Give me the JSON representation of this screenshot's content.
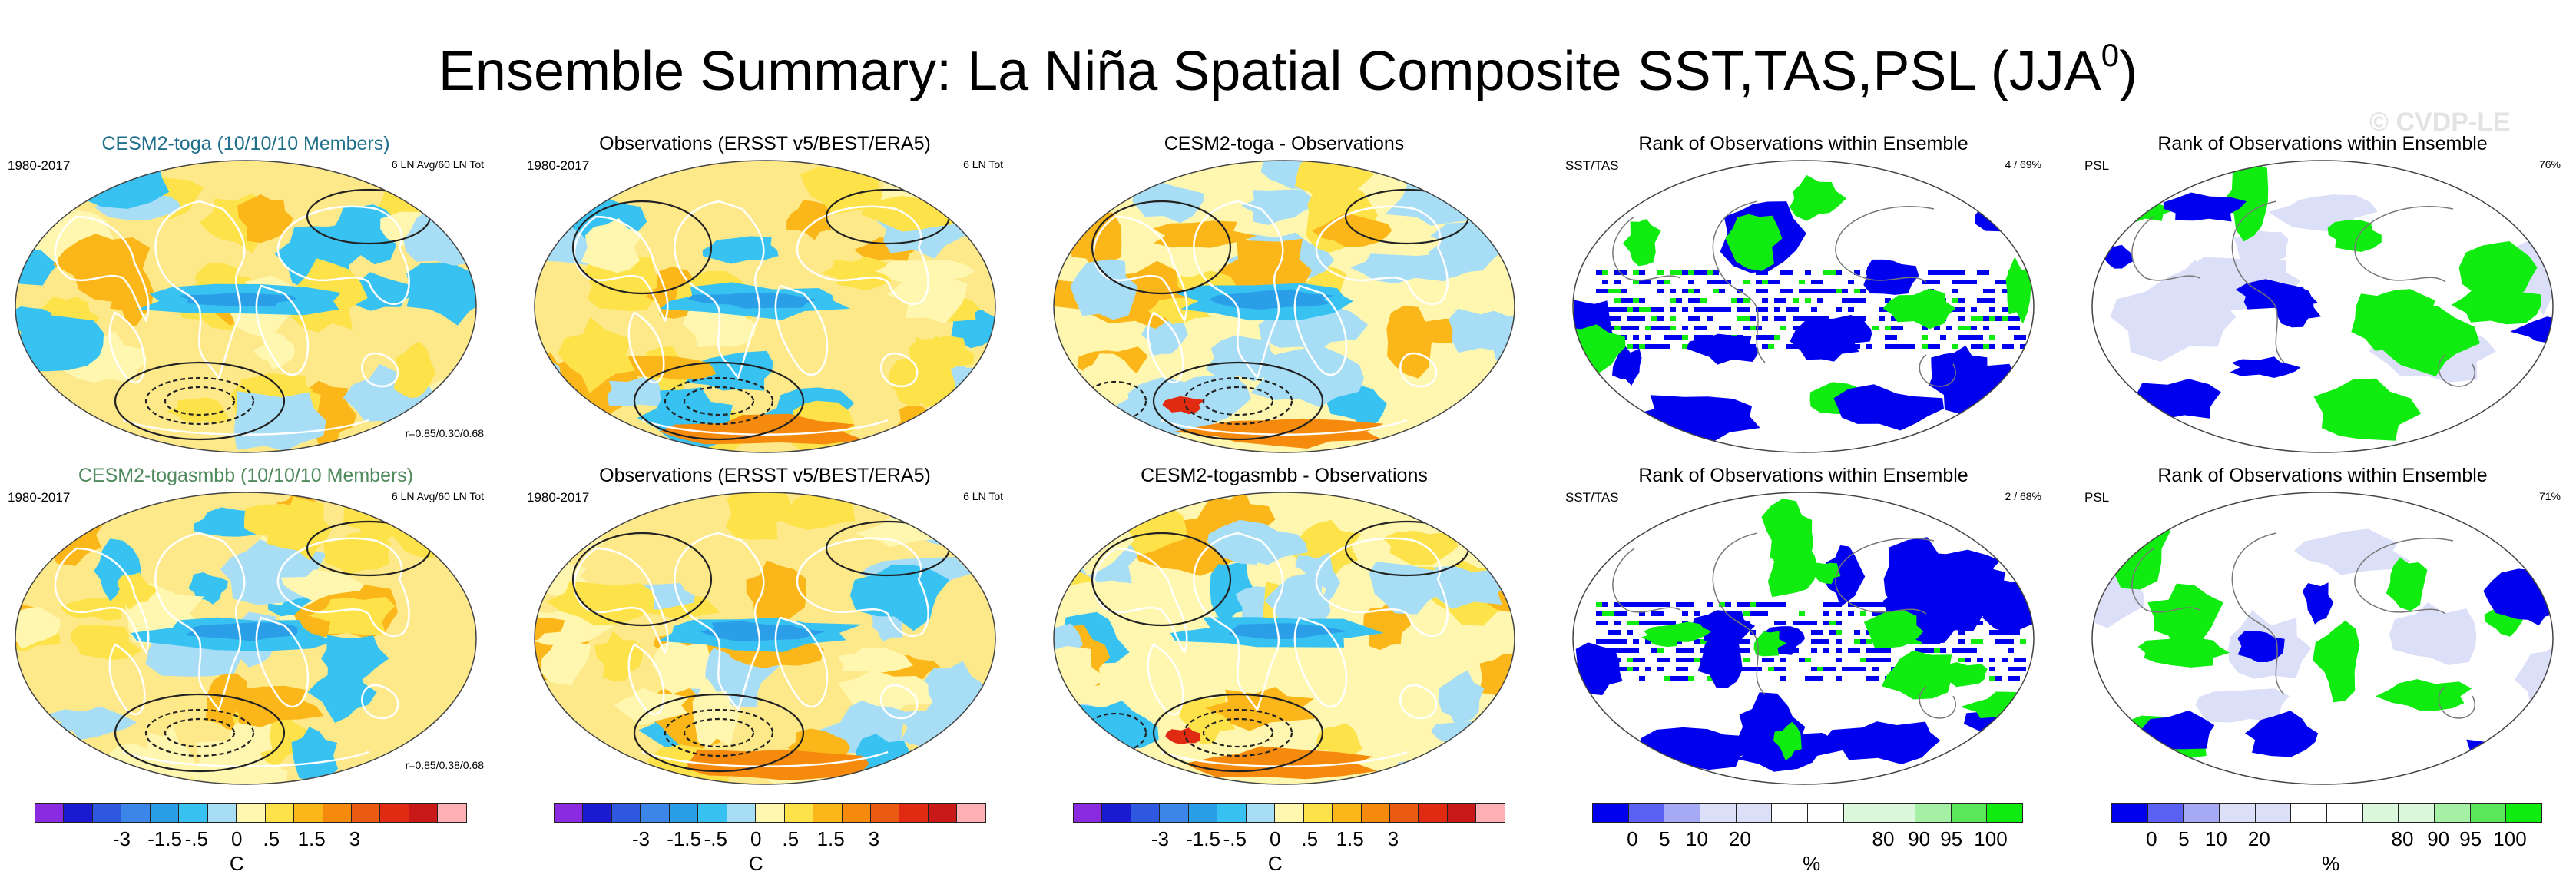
{
  "figure": {
    "title_main": "Ensemble Summary: La Niña Spatial Composite SST,TAS,PSL (JJA",
    "title_sup": "0",
    "title_end": ")",
    "watermark": "© CVDP-LE"
  },
  "panels": [
    {
      "title": "CESM2-toga (10/10/10 Members)",
      "left": "1980-2017",
      "right": "6 LN Avg/60 LN Tot",
      "corr": "r=0.85/0.30/0.68",
      "kind": "anom"
    },
    {
      "title": "Observations (ERSST v5/BEST/ERA5)",
      "left": "1980-2017",
      "right": "6 LN Tot",
      "corr": "",
      "kind": "anom"
    },
    {
      "title": "CESM2-toga - Observations",
      "left": "",
      "right": "",
      "corr": "",
      "kind": "anom"
    },
    {
      "title": "Rank of Observations within Ensemble",
      "left": "SST/TAS",
      "right": "4 /  69%",
      "corr": "",
      "kind": "rank"
    },
    {
      "title": "Rank of Observations within Ensemble",
      "left": "PSL",
      "right": "76%",
      "corr": "",
      "kind": "rank"
    },
    {
      "title": "CESM2-togasmbb (10/10/10 Members)",
      "left": "1980-2017",
      "right": "6 LN Avg/60 LN Tot",
      "corr": "r=0.85/0.38/0.68",
      "kind": "anom"
    },
    {
      "title": "Observations (ERSST v5/BEST/ERA5)",
      "left": "1980-2017",
      "right": "6 LN Tot",
      "corr": "",
      "kind": "anom"
    },
    {
      "title": "CESM2-togasmbb - Observations",
      "left": "",
      "right": "",
      "corr": "",
      "kind": "anom"
    },
    {
      "title": "Rank of Observations within Ensemble",
      "left": "SST/TAS",
      "right": "2 /  68%",
      "corr": "",
      "kind": "rank"
    },
    {
      "title": "Rank of Observations within Ensemble",
      "left": "PSL",
      "right": "71%",
      "corr": "",
      "kind": "rank"
    }
  ],
  "colorbars": {
    "temp": {
      "colors": [
        "#8a2be2",
        "#1a1ad0",
        "#2f58e0",
        "#3c86ea",
        "#2a9fe8",
        "#38c2f2",
        "#a8def5",
        "#fff7b0",
        "#fde24a",
        "#fbb71a",
        "#f58a0c",
        "#ea5a10",
        "#e02a12",
        "#c81818",
        "#ffb0b4"
      ],
      "ticks": [
        "-3",
        "-1.5",
        "-.5",
        "0",
        ".5",
        "1.5",
        "3"
      ],
      "unit": "C"
    },
    "rank": {
      "colors": [
        "#0000ee",
        "#5a60f2",
        "#a6aaf5",
        "#dcdff8",
        "#dcdff8",
        "#ffffff",
        "#ffffff",
        "#dcf8dc",
        "#dcf8dc",
        "#a6f0a6",
        "#5ae85a",
        "#10ec10"
      ],
      "ticks": [
        "0",
        "5",
        "10",
        "20",
        "80",
        "90",
        "95",
        "100"
      ],
      "unit": "%"
    }
  },
  "chart_data": {
    "type": "heatmap",
    "title": "Ensemble Summary: La Niña Spatial Composite SST,TAS,PSL (JJA0)",
    "season": "JJA0",
    "period": "1980-2017",
    "variables": [
      "SST",
      "TAS",
      "PSL"
    ],
    "units": {
      "anomaly": "C",
      "rank": "%"
    },
    "anomaly_levels": [
      -3,
      -1.5,
      -0.5,
      0,
      0.5,
      1.5,
      3
    ],
    "rank_levels": [
      0,
      5,
      10,
      20,
      80,
      90,
      95,
      100
    ],
    "rows": [
      {
        "model": "CESM2-toga",
        "members": "10/10/10",
        "pattern_correlations": [
          0.85,
          0.3,
          0.68
        ],
        "sst_tas_rank_summary": "4 /  69%",
        "psl_rank_summary": "76%"
      },
      {
        "model": "CESM2-togasmbb",
        "members": "10/10/10",
        "pattern_correlations": [
          0.85,
          0.38,
          0.68
        ],
        "sst_tas_rank_summary": "2 /  68%",
        "psl_rank_summary": "71%"
      }
    ]
  }
}
